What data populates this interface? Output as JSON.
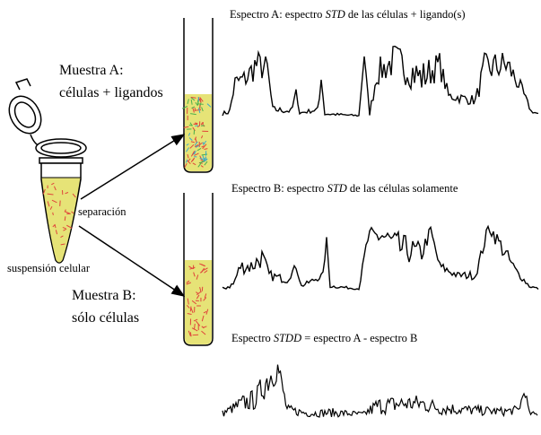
{
  "labels": {
    "sample_a": [
      "Muestra A:",
      "células + ligandos"
    ],
    "sample_b": [
      "Muestra B:",
      "sólo células"
    ],
    "separation": "separación",
    "suspension": "suspensión celular"
  },
  "spectra": [
    {
      "title": [
        "Espectro A: espectro ",
        "STD",
        " de las células + ligando(s)"
      ]
    },
    {
      "title": [
        "Espectro B: espectro ",
        "STD",
        " de las células solamente"
      ]
    },
    {
      "title": [
        "Espectro ",
        "STDD",
        " =  espectro A - espectro B"
      ]
    }
  ]
}
